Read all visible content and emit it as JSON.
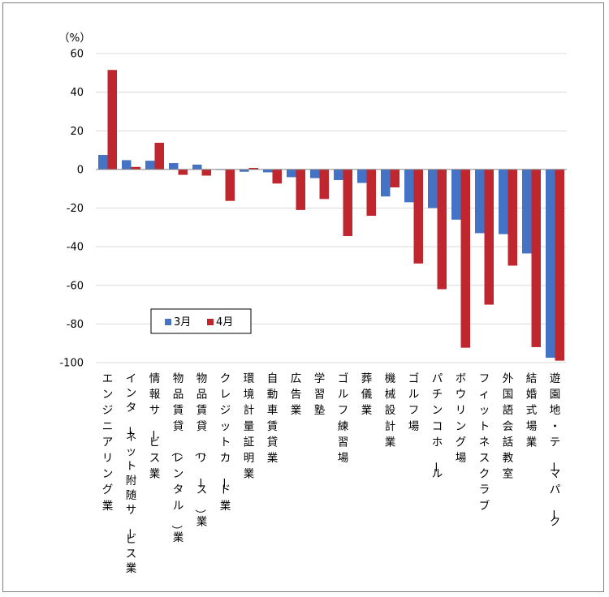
{
  "chart_data": {
    "type": "bar",
    "unit_label": "（%）",
    "ylim": [
      -100,
      60
    ],
    "yticks": [
      60,
      40,
      20,
      0,
      -20,
      -40,
      -60,
      -80,
      -100
    ],
    "grid": true,
    "legend_position": "lower-left inside",
    "categories": [
      "エンジニアリング業",
      "インターネット附随サービス業",
      "情報サービス業",
      "物品賃貸（レンタル）業",
      "物品賃貸（リース）業",
      "クレジットカード業",
      "環境計量証明業",
      "自動車賃貸業",
      "広告業",
      "学習塾",
      "ゴルフ練習場",
      "葬儀業",
      "機械設計業",
      "ゴルフ場",
      "パチンコホール",
      "ボウリング場",
      "フィットネスクラブ",
      "外国語会話教室",
      "結婚式場業",
      "遊園地・テーマパーク"
    ],
    "series": [
      {
        "name": "3月",
        "color": "#4472c4",
        "values": [
          7.5,
          4.8,
          4.5,
          3.3,
          2.5,
          -0.3,
          -1.2,
          -1.5,
          -4,
          -4.5,
          -5.5,
          -7,
          -14,
          -17,
          -20,
          -26,
          -33,
          -33.5,
          -43.5,
          -97.5
        ]
      },
      {
        "name": "4月",
        "color": "#c0262d",
        "values": [
          51.5,
          1.3,
          13.8,
          -2.8,
          -3.2,
          -16.3,
          0.8,
          -7.3,
          -21,
          -15.3,
          -34.5,
          -24,
          -9.3,
          -48.7,
          -62,
          -92.3,
          -70,
          -49.8,
          -92,
          -99
        ]
      }
    ]
  }
}
